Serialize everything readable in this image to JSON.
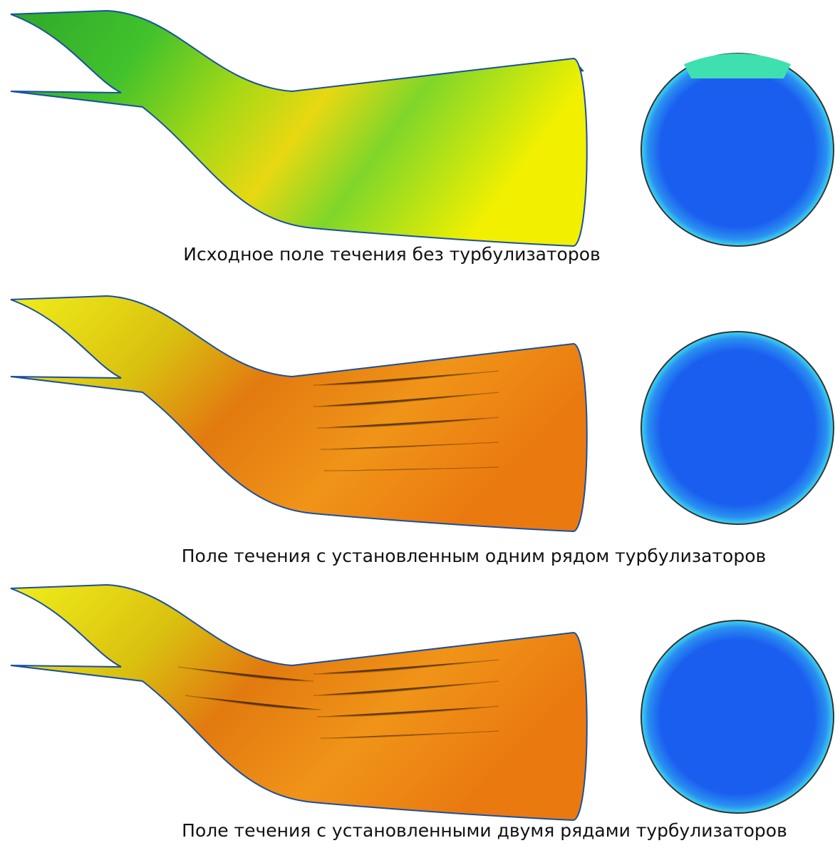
{
  "panels": [
    {
      "caption": "Исходное поле течения без турбулизаторов"
    },
    {
      "caption": "Поле течения с установленным одним рядом турбулизаторов"
    },
    {
      "caption": "Поле течения с установленными двумя рядами турбулизаторов"
    }
  ]
}
